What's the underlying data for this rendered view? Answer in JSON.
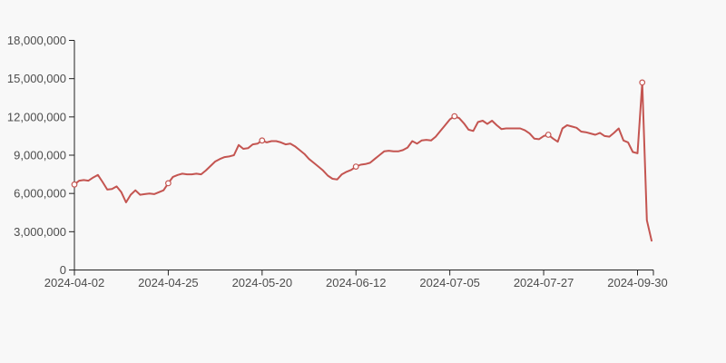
{
  "page": {
    "background_color": "#f8f8f8"
  },
  "chart_data": {
    "type": "line",
    "title": "",
    "legend": "none",
    "grid": "off",
    "line_color": "#c45551",
    "marker_fill": "#ffffff",
    "axis_color": "#222222",
    "label_color": "#4d4d4d",
    "y_axis_range": [
      0,
      18000000
    ],
    "y_tick_step": 3000000,
    "y_tick_labels": [
      "0",
      "3,000,000",
      "6,000,000",
      "9,000,000",
      "12,000,000",
      "15,000,000",
      "18,000,000"
    ],
    "x_tick_labels": [
      "2024-04-02",
      "2024-04-25",
      "2024-05-20",
      "2024-06-12",
      "2024-07-05",
      "2024-07-27",
      "2024-09-30"
    ],
    "x_tick_indices": [
      0,
      20,
      40,
      60,
      80,
      100,
      120
    ],
    "marker_indices": [
      0,
      20,
      40,
      60,
      81,
      101,
      121
    ],
    "values": [
      6700000,
      7000000,
      7050000,
      7000000,
      7250000,
      7450000,
      6900000,
      6300000,
      6350000,
      6550000,
      6100000,
      5300000,
      5900000,
      6250000,
      5900000,
      5950000,
      6000000,
      5950000,
      6100000,
      6250000,
      6800000,
      7300000,
      7450000,
      7550000,
      7500000,
      7500000,
      7550000,
      7500000,
      7800000,
      8150000,
      8500000,
      8700000,
      8850000,
      8900000,
      9000000,
      9800000,
      9500000,
      9550000,
      9850000,
      9900000,
      10150000,
      10000000,
      10100000,
      10100000,
      10000000,
      9850000,
      9900000,
      9700000,
      9400000,
      9100000,
      8700000,
      8400000,
      8100000,
      7800000,
      7400000,
      7150000,
      7100000,
      7500000,
      7700000,
      7850000,
      8100000,
      8250000,
      8300000,
      8400000,
      8700000,
      9000000,
      9300000,
      9350000,
      9300000,
      9300000,
      9400000,
      9600000,
      10100000,
      9900000,
      10150000,
      10200000,
      10150000,
      10450000,
      10900000,
      11350000,
      11800000,
      12050000,
      11900000,
      11500000,
      11000000,
      10900000,
      11600000,
      11700000,
      11450000,
      11700000,
      11350000,
      11050000,
      11100000,
      11100000,
      11100000,
      11100000,
      10950000,
      10700000,
      10300000,
      10250000,
      10500000,
      10600000,
      10300000,
      10050000,
      11100000,
      11350000,
      11250000,
      11150000,
      10850000,
      10800000,
      10700000,
      10600000,
      10750000,
      10500000,
      10450000,
      10750000,
      11100000,
      10150000,
      10000000,
      9250000,
      9150000,
      14700000,
      3900000,
      2300000
    ]
  }
}
